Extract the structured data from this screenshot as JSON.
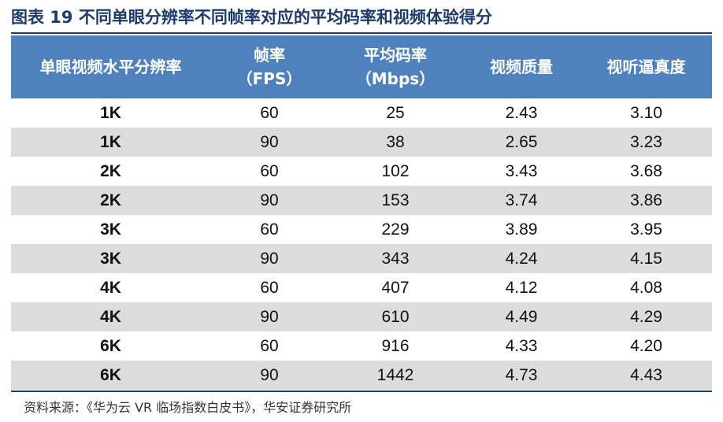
{
  "title": "图表 19  不同单眼分辨率不同帧率对应的平均码率和视频体验得分",
  "table": {
    "headers": [
      {
        "lines": [
          "单眼视频水平分辨率"
        ]
      },
      {
        "lines": [
          "帧率",
          "（FPS）"
        ]
      },
      {
        "lines": [
          "平均码率",
          "（Mbps）"
        ]
      },
      {
        "lines": [
          "视频质量"
        ]
      },
      {
        "lines": [
          "视听逼真度"
        ]
      }
    ],
    "rows": [
      [
        "1K",
        "60",
        "25",
        "2.43",
        "3.10"
      ],
      [
        "1K",
        "90",
        "38",
        "2.65",
        "3.23"
      ],
      [
        "2K",
        "60",
        "102",
        "3.43",
        "3.68"
      ],
      [
        "2K",
        "90",
        "153",
        "3.74",
        "3.86"
      ],
      [
        "3K",
        "60",
        "229",
        "3.89",
        "3.95"
      ],
      [
        "3K",
        "90",
        "343",
        "4.24",
        "4.15"
      ],
      [
        "4K",
        "60",
        "407",
        "4.12",
        "4.08"
      ],
      [
        "4K",
        "90",
        "610",
        "4.49",
        "4.29"
      ],
      [
        "6K",
        "60",
        "916",
        "4.33",
        "4.20"
      ],
      [
        "6K",
        "90",
        "1442",
        "4.73",
        "4.43"
      ]
    ]
  },
  "source": "资料来源：《华为云 VR 临场指数白皮书》，华安证券研究所",
  "colors": {
    "header_bg": "#4f81bd",
    "stripe": "#dcdcdc",
    "title": "#1f3b6b"
  }
}
